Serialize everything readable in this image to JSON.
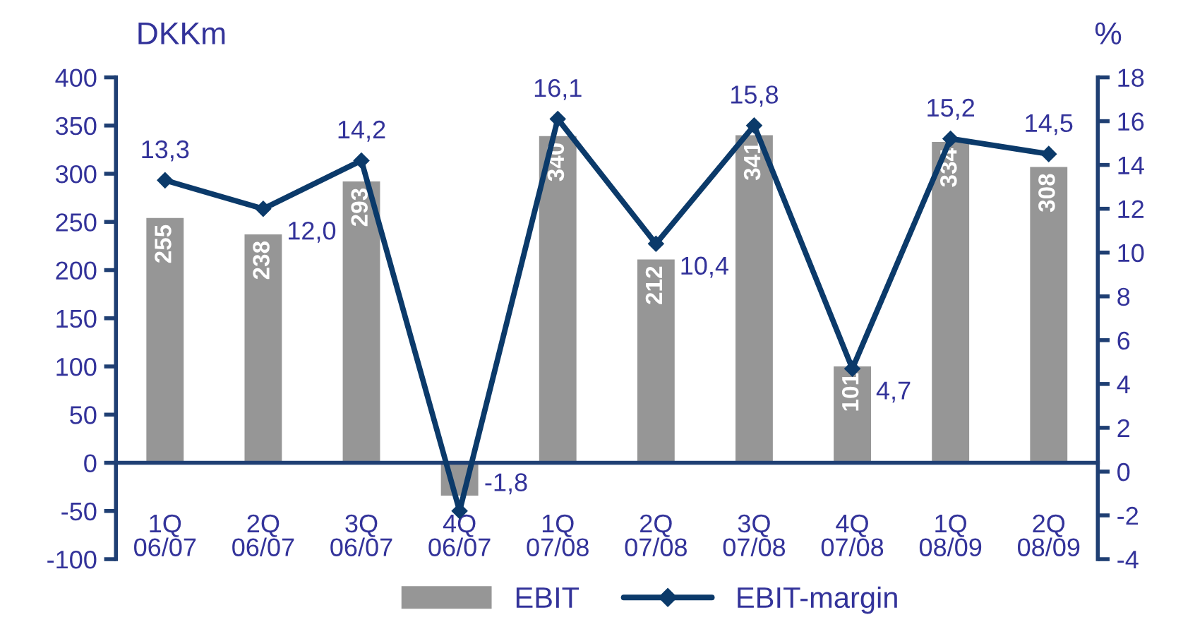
{
  "chart_data": {
    "type": "bar",
    "ylabel": "DKKm",
    "y2label": "%",
    "categories": [
      "1Q\n06/07",
      "2Q\n06/07",
      "3Q\n06/07",
      "4Q\n06/07",
      "1Q\n07/08",
      "2Q\n07/08",
      "3Q\n07/08",
      "4Q\n07/08",
      "1Q\n08/09",
      "2Q\n08/09"
    ],
    "series": [
      {
        "name": "EBIT",
        "color": "#969696",
        "values": [
          255,
          238,
          293,
          -35,
          340,
          212,
          341,
          101,
          334,
          308
        ],
        "value_labels": [
          "255",
          "238",
          "293",
          null,
          "340",
          "212",
          "341",
          "101",
          "334",
          "308"
        ]
      },
      {
        "name": "EBIT-margin",
        "type": "line",
        "axis": "y2",
        "color": "#0b3a6a",
        "marker": "diamond",
        "values": [
          13.3,
          12.0,
          14.2,
          -1.8,
          16.1,
          10.4,
          15.8,
          4.7,
          15.2,
          14.5
        ],
        "value_labels": [
          "13,3",
          "12,0",
          "14,2",
          "-1,8",
          "16,1",
          "10,4",
          "15,8",
          "4,7",
          "15,2",
          "14,5"
        ]
      }
    ],
    "ylim": [
      -100,
      400
    ],
    "yticks": [
      -100,
      -50,
      0,
      50,
      100,
      150,
      200,
      250,
      300,
      350,
      400
    ],
    "y2lim": [
      -4,
      18
    ],
    "y2ticks": [
      -4,
      -2,
      0,
      2,
      4,
      6,
      8,
      10,
      12,
      14,
      16,
      18
    ],
    "grid": false,
    "legend": "bottom"
  }
}
